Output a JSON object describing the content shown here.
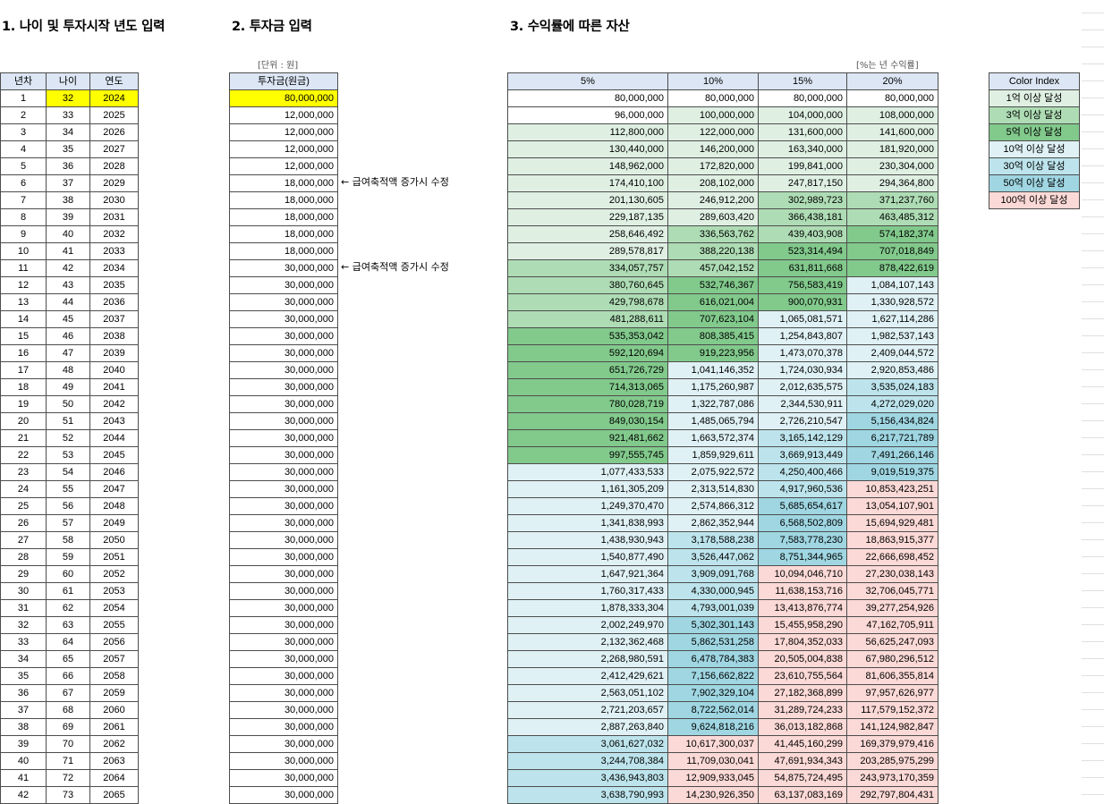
{
  "sections": {
    "age_title": "1. 나이 및 투자시작 년도 입력",
    "invest_title": "2. 투자금 입력",
    "assets_title": "3. 수익률에 따른 자산"
  },
  "units": {
    "invest_unit": "[단위 : 원]",
    "rate_unit": "[%는 년 수익률]"
  },
  "notes": {
    "note1": "← 급여축적액 증가시 수정",
    "note2": "← 급여축적액 증가시 수정"
  },
  "age_table": {
    "headers": [
      "년차",
      "나이",
      "연도"
    ],
    "rows": [
      [
        "1",
        "32",
        "2024"
      ],
      [
        "2",
        "33",
        "2025"
      ],
      [
        "3",
        "34",
        "2026"
      ],
      [
        "4",
        "35",
        "2027"
      ],
      [
        "5",
        "36",
        "2028"
      ],
      [
        "6",
        "37",
        "2029"
      ],
      [
        "7",
        "38",
        "2030"
      ],
      [
        "8",
        "39",
        "2031"
      ],
      [
        "9",
        "40",
        "2032"
      ],
      [
        "10",
        "41",
        "2033"
      ],
      [
        "11",
        "42",
        "2034"
      ],
      [
        "12",
        "43",
        "2035"
      ],
      [
        "13",
        "44",
        "2036"
      ],
      [
        "14",
        "45",
        "2037"
      ],
      [
        "15",
        "46",
        "2038"
      ],
      [
        "16",
        "47",
        "2039"
      ],
      [
        "17",
        "48",
        "2040"
      ],
      [
        "18",
        "49",
        "2041"
      ],
      [
        "19",
        "50",
        "2042"
      ],
      [
        "20",
        "51",
        "2043"
      ],
      [
        "21",
        "52",
        "2044"
      ],
      [
        "22",
        "53",
        "2045"
      ],
      [
        "23",
        "54",
        "2046"
      ],
      [
        "24",
        "55",
        "2047"
      ],
      [
        "25",
        "56",
        "2048"
      ],
      [
        "26",
        "57",
        "2049"
      ],
      [
        "27",
        "58",
        "2050"
      ],
      [
        "28",
        "59",
        "2051"
      ],
      [
        "29",
        "60",
        "2052"
      ],
      [
        "30",
        "61",
        "2053"
      ],
      [
        "31",
        "62",
        "2054"
      ],
      [
        "32",
        "63",
        "2055"
      ],
      [
        "33",
        "64",
        "2056"
      ],
      [
        "34",
        "65",
        "2057"
      ],
      [
        "35",
        "66",
        "2058"
      ],
      [
        "36",
        "67",
        "2059"
      ],
      [
        "37",
        "68",
        "2060"
      ],
      [
        "38",
        "69",
        "2061"
      ],
      [
        "39",
        "70",
        "2062"
      ],
      [
        "40",
        "71",
        "2063"
      ],
      [
        "41",
        "72",
        "2064"
      ],
      [
        "42",
        "73",
        "2065"
      ]
    ]
  },
  "invest_table": {
    "header": "투자금(원금)",
    "values": [
      "80,000,000",
      "12,000,000",
      "12,000,000",
      "12,000,000",
      "12,000,000",
      "18,000,000",
      "18,000,000",
      "18,000,000",
      "18,000,000",
      "18,000,000",
      "30,000,000",
      "30,000,000",
      "30,000,000",
      "30,000,000",
      "30,000,000",
      "30,000,000",
      "30,000,000",
      "30,000,000",
      "30,000,000",
      "30,000,000",
      "30,000,000",
      "30,000,000",
      "30,000,000",
      "30,000,000",
      "30,000,000",
      "30,000,000",
      "30,000,000",
      "30,000,000",
      "30,000,000",
      "30,000,000",
      "30,000,000",
      "30,000,000",
      "30,000,000",
      "30,000,000",
      "30,000,000",
      "30,000,000",
      "30,000,000",
      "30,000,000",
      "30,000,000",
      "30,000,000",
      "30,000,000",
      "30,000,000"
    ]
  },
  "assets_table": {
    "headers": [
      "5%",
      "10%",
      "15%",
      "20%"
    ],
    "rows": [
      [
        "80,000,000",
        "80,000,000",
        "80,000,000",
        "80,000,000"
      ],
      [
        "96,000,000",
        "100,000,000",
        "104,000,000",
        "108,000,000"
      ],
      [
        "112,800,000",
        "122,000,000",
        "131,600,000",
        "141,600,000"
      ],
      [
        "130,440,000",
        "146,200,000",
        "163,340,000",
        "181,920,000"
      ],
      [
        "148,962,000",
        "172,820,000",
        "199,841,000",
        "230,304,000"
      ],
      [
        "174,410,100",
        "208,102,000",
        "247,817,150",
        "294,364,800"
      ],
      [
        "201,130,605",
        "246,912,200",
        "302,989,723",
        "371,237,760"
      ],
      [
        "229,187,135",
        "289,603,420",
        "366,438,181",
        "463,485,312"
      ],
      [
        "258,646,492",
        "336,563,762",
        "439,403,908",
        "574,182,374"
      ],
      [
        "289,578,817",
        "388,220,138",
        "523,314,494",
        "707,018,849"
      ],
      [
        "334,057,757",
        "457,042,152",
        "631,811,668",
        "878,422,619"
      ],
      [
        "380,760,645",
        "532,746,367",
        "756,583,419",
        "1,084,107,143"
      ],
      [
        "429,798,678",
        "616,021,004",
        "900,070,931",
        "1,330,928,572"
      ],
      [
        "481,288,611",
        "707,623,104",
        "1,065,081,571",
        "1,627,114,286"
      ],
      [
        "535,353,042",
        "808,385,415",
        "1,254,843,807",
        "1,982,537,143"
      ],
      [
        "592,120,694",
        "919,223,956",
        "1,473,070,378",
        "2,409,044,572"
      ],
      [
        "651,726,729",
        "1,041,146,352",
        "1,724,030,934",
        "2,920,853,486"
      ],
      [
        "714,313,065",
        "1,175,260,987",
        "2,012,635,575",
        "3,535,024,183"
      ],
      [
        "780,028,719",
        "1,322,787,086",
        "2,344,530,911",
        "4,272,029,020"
      ],
      [
        "849,030,154",
        "1,485,065,794",
        "2,726,210,547",
        "5,156,434,824"
      ],
      [
        "921,481,662",
        "1,663,572,374",
        "3,165,142,129",
        "6,217,721,789"
      ],
      [
        "997,555,745",
        "1,859,929,611",
        "3,669,913,449",
        "7,491,266,146"
      ],
      [
        "1,077,433,533",
        "2,075,922,572",
        "4,250,400,466",
        "9,019,519,375"
      ],
      [
        "1,161,305,209",
        "2,313,514,830",
        "4,917,960,536",
        "10,853,423,251"
      ],
      [
        "1,249,370,470",
        "2,574,866,312",
        "5,685,654,617",
        "13,054,107,901"
      ],
      [
        "1,341,838,993",
        "2,862,352,944",
        "6,568,502,809",
        "15,694,929,481"
      ],
      [
        "1,438,930,943",
        "3,178,588,238",
        "7,583,778,230",
        "18,863,915,377"
      ],
      [
        "1,540,877,490",
        "3,526,447,062",
        "8,751,344,965",
        "22,666,698,452"
      ],
      [
        "1,647,921,364",
        "3,909,091,768",
        "10,094,046,710",
        "27,230,038,143"
      ],
      [
        "1,760,317,433",
        "4,330,000,945",
        "11,638,153,716",
        "32,706,045,771"
      ],
      [
        "1,878,333,304",
        "4,793,001,039",
        "13,413,876,774",
        "39,277,254,926"
      ],
      [
        "2,002,249,970",
        "5,302,301,143",
        "15,455,958,290",
        "47,162,705,911"
      ],
      [
        "2,132,362,468",
        "5,862,531,258",
        "17,804,352,033",
        "56,625,247,093"
      ],
      [
        "2,268,980,591",
        "6,478,784,383",
        "20,505,004,838",
        "67,980,296,512"
      ],
      [
        "2,412,429,621",
        "7,156,662,822",
        "23,610,755,564",
        "81,606,355,814"
      ],
      [
        "2,563,051,102",
        "7,902,329,104",
        "27,182,368,899",
        "97,957,626,977"
      ],
      [
        "2,721,203,657",
        "8,722,562,014",
        "31,289,724,233",
        "117,579,152,372"
      ],
      [
        "2,887,263,840",
        "9,624,818,216",
        "36,013,182,868",
        "141,124,982,847"
      ],
      [
        "3,061,627,032",
        "10,617,300,037",
        "41,445,160,299",
        "169,379,979,416"
      ],
      [
        "3,244,708,384",
        "11,709,030,041",
        "47,691,934,343",
        "203,285,975,299"
      ],
      [
        "3,436,943,803",
        "12,909,933,045",
        "54,875,724,495",
        "243,973,170,359"
      ],
      [
        "3,638,790,993",
        "14,230,926,350",
        "63,137,083,169",
        "292,797,804,431"
      ]
    ]
  },
  "color_index": {
    "header": "Color Index",
    "items": [
      {
        "label": "1억 이상 달성",
        "color": "#dff0e3"
      },
      {
        "label": "3억 이상 달성",
        "color": "#aedcb4"
      },
      {
        "label": "5억 이상 달성",
        "color": "#82c98c"
      },
      {
        "label": "10억 이상 달성",
        "color": "#dff1f5"
      },
      {
        "label": "30억 이상 달성",
        "color": "#bde4ec"
      },
      {
        "label": "50억 이상 달성",
        "color": "#9fd6e2"
      },
      {
        "label": "100억 이상 달성",
        "color": "#fbd9d6"
      }
    ]
  },
  "colors": {
    "highlight_yellow": "#ffff00",
    "header_blue": "#dce6f4"
  }
}
